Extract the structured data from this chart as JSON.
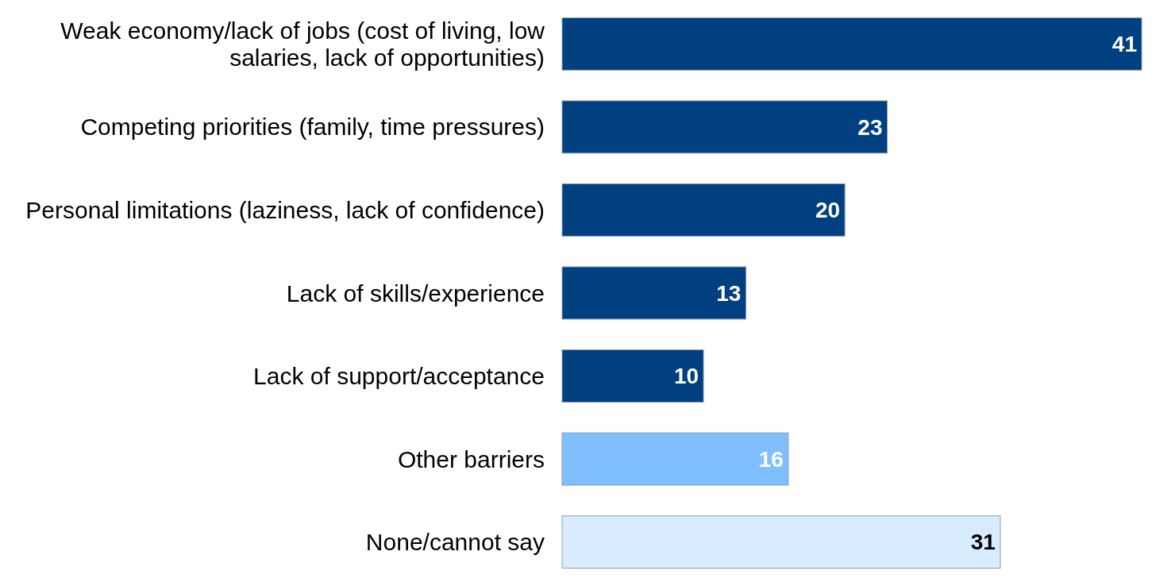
{
  "chart_data": {
    "type": "bar",
    "orientation": "horizontal",
    "data_labels": true,
    "categories": [
      "Weak economy/lack of jobs (cost of living, low salaries, lack of opportunities)",
      "Competing priorities (family, time pressures)",
      "Personal limitations (laziness, lack of confidence)",
      "Lack of skills/experience",
      "Lack of support/acceptance",
      "Other barriers",
      "None/cannot say"
    ],
    "values": [
      41,
      23,
      20,
      13,
      10,
      16,
      31
    ],
    "colors": [
      "#003f80",
      "#003f80",
      "#003f80",
      "#003f80",
      "#003f80",
      "#80bfff",
      "#d9ecff"
    ]
  }
}
